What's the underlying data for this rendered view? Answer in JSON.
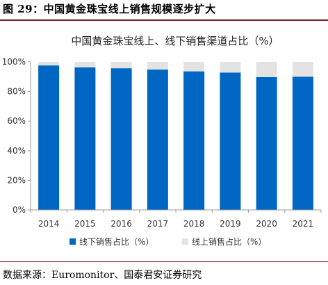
{
  "figure": {
    "label": "图 29：中国黄金珠宝线上销售规模逐步扩大",
    "source": "数据来源：Euromonitor、国泰君安证券研究"
  },
  "chart_data": {
    "type": "bar",
    "stacked": true,
    "title": "中国黄金珠宝线上、线下销售渠道占比（%）",
    "categories": [
      "2014",
      "2015",
      "2016",
      "2017",
      "2018",
      "2019",
      "2020",
      "2021"
    ],
    "series": [
      {
        "name": "线下销售占比（%）",
        "color": "#0066c4",
        "values": [
          97.6,
          96.3,
          95.7,
          94.8,
          93.6,
          92.8,
          89.7,
          90.0
        ]
      },
      {
        "name": "线上销售占比（%）",
        "color": "#e3e3e3",
        "values": [
          2.4,
          3.7,
          4.3,
          5.2,
          6.4,
          7.2,
          10.3,
          10.0
        ]
      }
    ],
    "yticks": [
      "0%",
      "20%",
      "40%",
      "60%",
      "80%",
      "100%"
    ],
    "ylim": [
      0,
      100
    ],
    "legend_position": "bottom",
    "grid": false
  }
}
